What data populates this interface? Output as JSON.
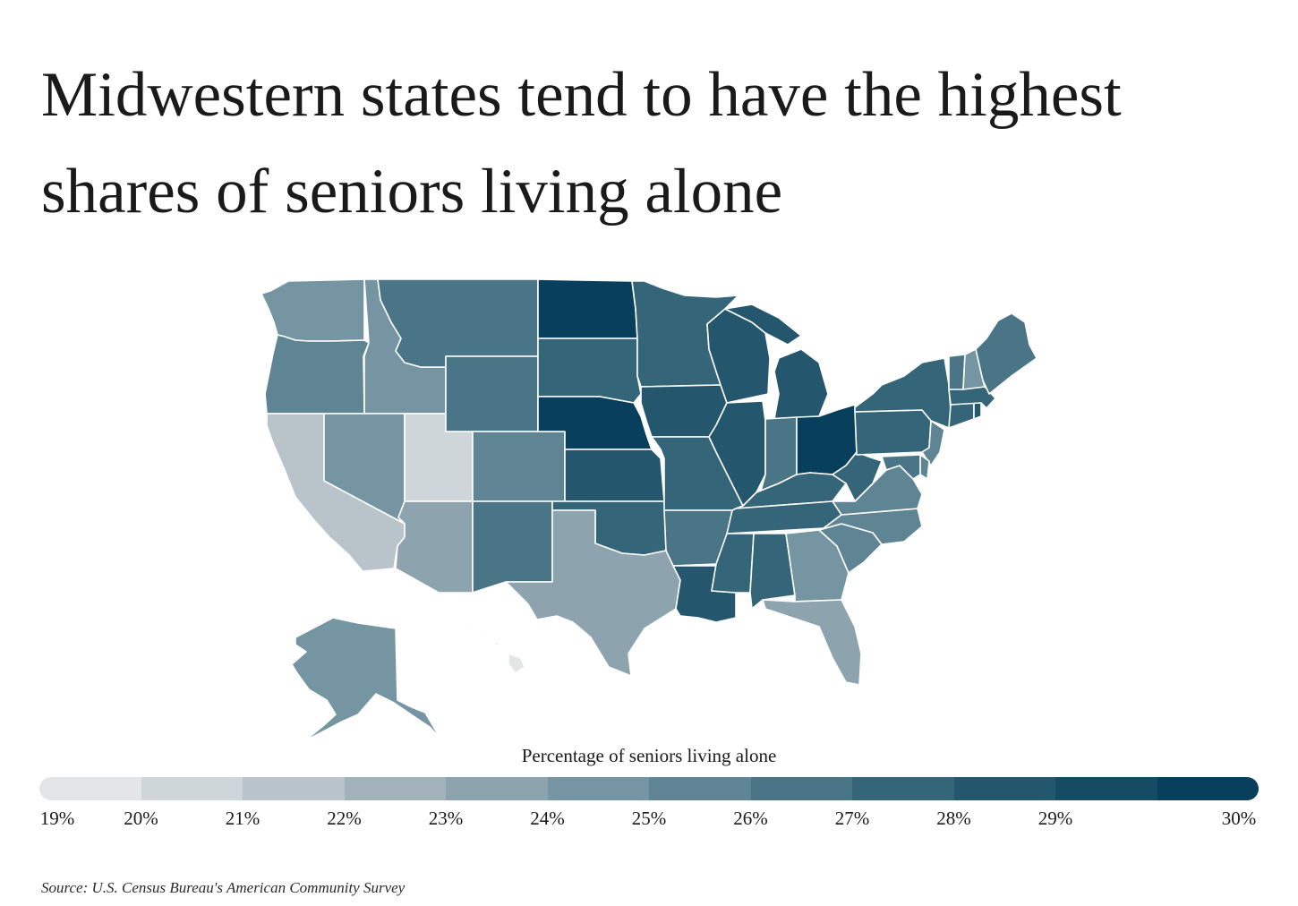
{
  "title": "Midwestern states tend to have the highest shares of seniors living alone",
  "legend": {
    "title": "Percentage of seniors living alone",
    "ticks": [
      "19%",
      "20%",
      "21%",
      "22%",
      "23%",
      "24%",
      "25%",
      "26%",
      "27%",
      "28%",
      "29%",
      "30%"
    ],
    "colors": [
      "#e4e5e6",
      "#cfd6da",
      "#b9c4ca",
      "#a2b2ba",
      "#8da4af",
      "#7595a2",
      "#5f8595",
      "#4a7587",
      "#356579",
      "#24566d",
      "#164b64",
      "#073f5c"
    ]
  },
  "source": "Source: U.S. Census Bureau's American Community Survey",
  "regions": [
    {
      "name": "Washington",
      "value": 24
    },
    {
      "name": "Oregon",
      "value": 25
    },
    {
      "name": "California",
      "value": 21
    },
    {
      "name": "Idaho",
      "value": 24
    },
    {
      "name": "Nevada",
      "value": 24
    },
    {
      "name": "Utah",
      "value": 20
    },
    {
      "name": "Arizona",
      "value": 23
    },
    {
      "name": "Montana",
      "value": 26
    },
    {
      "name": "Wyoming",
      "value": 26
    },
    {
      "name": "Colorado",
      "value": 25
    },
    {
      "name": "New Mexico",
      "value": 26
    },
    {
      "name": "North Dakota",
      "value": 30
    },
    {
      "name": "South Dakota",
      "value": 27
    },
    {
      "name": "Nebraska",
      "value": 30
    },
    {
      "name": "Kansas",
      "value": 28
    },
    {
      "name": "Oklahoma",
      "value": 27
    },
    {
      "name": "Texas",
      "value": 23
    },
    {
      "name": "Minnesota",
      "value": 27
    },
    {
      "name": "Iowa",
      "value": 28
    },
    {
      "name": "Missouri",
      "value": 27
    },
    {
      "name": "Arkansas",
      "value": 26
    },
    {
      "name": "Louisiana",
      "value": 28
    },
    {
      "name": "Wisconsin",
      "value": 28
    },
    {
      "name": "Illinois",
      "value": 28
    },
    {
      "name": "Michigan",
      "value": 28
    },
    {
      "name": "Indiana",
      "value": 26
    },
    {
      "name": "Ohio",
      "value": 30
    },
    {
      "name": "Kentucky",
      "value": 27
    },
    {
      "name": "Tennessee",
      "value": 27
    },
    {
      "name": "Mississippi",
      "value": 27
    },
    {
      "name": "Alabama",
      "value": 27
    },
    {
      "name": "Georgia",
      "value": 24
    },
    {
      "name": "Florida",
      "value": 23
    },
    {
      "name": "South Carolina",
      "value": 25
    },
    {
      "name": "North Carolina",
      "value": 25
    },
    {
      "name": "Virginia",
      "value": 25
    },
    {
      "name": "West Virginia",
      "value": 27
    },
    {
      "name": "Pennsylvania",
      "value": 27
    },
    {
      "name": "New York",
      "value": 27
    },
    {
      "name": "New Jersey",
      "value": 25
    },
    {
      "name": "Delaware",
      "value": 25
    },
    {
      "name": "Maryland",
      "value": 26
    },
    {
      "name": "Connecticut",
      "value": 27
    },
    {
      "name": "Rhode Island",
      "value": 28
    },
    {
      "name": "Massachusetts",
      "value": 27
    },
    {
      "name": "Vermont",
      "value": 26
    },
    {
      "name": "New Hampshire",
      "value": 24
    },
    {
      "name": "Maine",
      "value": 26
    },
    {
      "name": "Alaska",
      "value": 24
    },
    {
      "name": "Hawaii",
      "value": 19
    }
  ]
}
